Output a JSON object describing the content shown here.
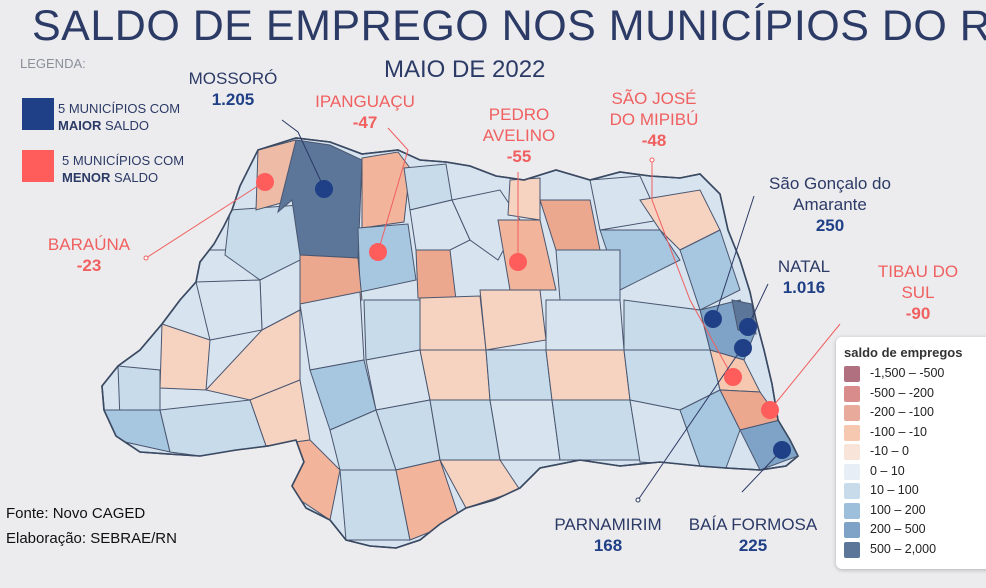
{
  "title": "SALDO DE EMPREGO NOS MUNICÍPIOS DO RN",
  "subtitle": "MAIO DE 2022",
  "legend_label": "LEGENDA:",
  "key_max": {
    "line1": "5 MUNICÍPIOS COM",
    "bold": "MAIOR",
    "rest": " SALDO",
    "color": "#1f3f86"
  },
  "key_min": {
    "line1": "5 MUNICÍPIOS COM",
    "bold": "MENOR",
    "rest": " SALDO",
    "color": "#ff5c5c"
  },
  "labels": {
    "mossoro": {
      "name": "MOSSORÓ",
      "value": "1.205"
    },
    "ipanguacu": {
      "name": "IPANGUAÇU",
      "value": "-47"
    },
    "pedro_avelino": {
      "line1": "PEDRO",
      "line2": "AVELINO",
      "value": "-55"
    },
    "sao_jose": {
      "line1": "SÃO JOSÉ",
      "line2": "DO MIPIBÚ",
      "value": "-48"
    },
    "sao_goncalo": {
      "line1": "São Gonçalo do",
      "line2": "Amarante",
      "value": "250"
    },
    "barauna": {
      "name": "BARAÚNA",
      "value": "-23"
    },
    "natal": {
      "name": "NATAL",
      "value": "1.016"
    },
    "tibau": {
      "line1": "TIBAU DO",
      "line2": "SUL",
      "value": "-90"
    },
    "parnamirim": {
      "name": "PARNAMIRIM",
      "value": "168"
    },
    "baia_formosa": {
      "name": "BAÍA FORMOSA",
      "value": "225"
    }
  },
  "source": "Fonte: Novo CAGED",
  "elaboration": "Elaboração: SEBRAE/RN",
  "legend": {
    "title": "saldo de empregos",
    "items": [
      {
        "label": "-1,500 – -500",
        "color": "#b0707f"
      },
      {
        "label": "-500 – -200",
        "color": "#d98c8c"
      },
      {
        "label": "-200 – -100",
        "color": "#e8aa9a"
      },
      {
        "label": "-100 – -10",
        "color": "#f6c8b0"
      },
      {
        "label": "-10 – 0",
        "color": "#f8e4d8"
      },
      {
        "label": "0 – 10",
        "color": "#e8eef6"
      },
      {
        "label": "10 – 100",
        "color": "#c7dbea"
      },
      {
        "label": "100 – 200",
        "color": "#9dbfdb"
      },
      {
        "label": "200 – 500",
        "color": "#7ea3c6"
      },
      {
        "label": "500 – 2,000",
        "color": "#5c7699"
      }
    ]
  }
}
